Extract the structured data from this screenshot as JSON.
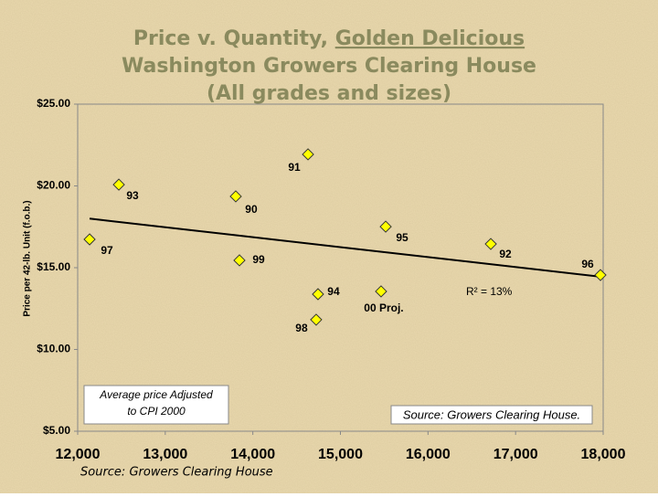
{
  "chart_data": {
    "type": "scatter",
    "title_parts": [
      "Price v. Quantity,",
      "Golden Delicious"
    ],
    "subtitle": [
      "Washington Growers Clearing House",
      "(All grades and sizes)"
    ],
    "y_label": "Price per 42-lb. Unit (f.o.b.)",
    "xlim": [
      12000,
      18000
    ],
    "xticks": [
      {
        "value": 12000,
        "label": "12,000"
      },
      {
        "value": 13000,
        "label": "13,000"
      },
      {
        "value": 14000,
        "label": "14,000"
      },
      {
        "value": 15000,
        "label": "15,000"
      },
      {
        "value": 16000,
        "label": "16,000"
      },
      {
        "value": 17000,
        "label": "17,000"
      },
      {
        "value": 18000,
        "label": "18,000"
      }
    ],
    "ylim": [
      5,
      25
    ],
    "yticks": [
      {
        "value": 5,
        "label": "$5.00"
      },
      {
        "value": 10,
        "label": "$10.00"
      },
      {
        "value": 15,
        "label": "$15.00"
      },
      {
        "value": 20,
        "label": "$20.00"
      },
      {
        "value": 25,
        "label": "$25.00"
      }
    ],
    "grid": false,
    "series": [
      {
        "color": "#ffff00",
        "x": [
          12136,
          12470,
          13805,
          13847,
          14630,
          14744,
          14723,
          15517,
          15464,
          16717,
          17969
        ],
        "values": [
          16.73,
          20.08,
          19.36,
          15.45,
          21.93,
          13.38,
          11.82,
          17.51,
          13.55,
          16.45,
          14.55
        ],
        "labels": [
          "97",
          "93",
          "90",
          "99",
          "91",
          "94",
          "98",
          "95",
          "00 Proj.",
          "92",
          "96"
        ]
      }
    ],
    "trendline": {
      "color": "#000000",
      "x": [
        12136,
        17969
      ],
      "values": [
        18.0,
        14.45
      ],
      "label": "R² = 13%"
    },
    "note_box": [
      "Average price Adjusted",
      "to CPI 2000"
    ],
    "source_box": "Source: Growers Clearing House.",
    "footer": "Source: Growers Clearing House"
  }
}
